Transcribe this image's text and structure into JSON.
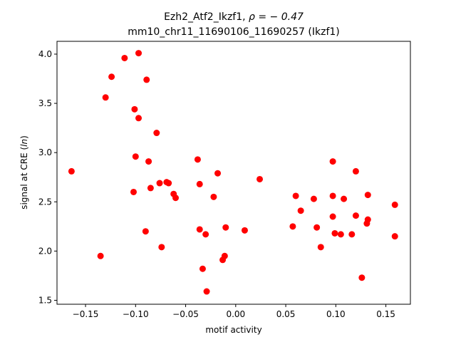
{
  "chart_data": {
    "type": "scatter",
    "title_line1": "Ezh2_Atf2_Ikzf1, ",
    "title_rho": "ρ = − 0.47",
    "title_line2": "mm10_chr11_11690106_11690257 (Ikzf1)",
    "xlabel": "motif activity",
    "ylabel_prefix": "signal at CRE (",
    "ylabel_italic": "ln",
    "ylabel_suffix": ")",
    "xlim": [
      -0.1785,
      0.1745
    ],
    "ylim": [
      1.46,
      4.13
    ],
    "xticks": [
      -0.15,
      -0.1,
      -0.05,
      0.0,
      0.05,
      0.1,
      0.15
    ],
    "xtick_labels": [
      "−0.15",
      "−0.10",
      "−0.05",
      "0.00",
      "0.05",
      "0.10",
      "0.15"
    ],
    "yticks": [
      1.5,
      2.0,
      2.5,
      3.0,
      3.5,
      4.0
    ],
    "ytick_labels": [
      "1.5",
      "2.0",
      "2.5",
      "3.0",
      "3.5",
      "4.0"
    ],
    "grid": false,
    "marker_color": "#ff0000",
    "points": [
      {
        "x": -0.164,
        "y": 2.81
      },
      {
        "x": -0.135,
        "y": 1.95
      },
      {
        "x": -0.13,
        "y": 3.56
      },
      {
        "x": -0.124,
        "y": 3.77
      },
      {
        "x": -0.111,
        "y": 3.96
      },
      {
        "x": -0.102,
        "y": 2.6
      },
      {
        "x": -0.101,
        "y": 3.44
      },
      {
        "x": -0.1,
        "y": 2.96
      },
      {
        "x": -0.097,
        "y": 4.01
      },
      {
        "x": -0.097,
        "y": 3.35
      },
      {
        "x": -0.09,
        "y": 2.2
      },
      {
        "x": -0.089,
        "y": 3.74
      },
      {
        "x": -0.087,
        "y": 2.91
      },
      {
        "x": -0.085,
        "y": 2.64
      },
      {
        "x": -0.079,
        "y": 3.2
      },
      {
        "x": -0.076,
        "y": 2.69
      },
      {
        "x": -0.074,
        "y": 2.04
      },
      {
        "x": -0.069,
        "y": 2.7
      },
      {
        "x": -0.067,
        "y": 2.69
      },
      {
        "x": -0.062,
        "y": 2.58
      },
      {
        "x": -0.06,
        "y": 2.54
      },
      {
        "x": -0.038,
        "y": 2.93
      },
      {
        "x": -0.036,
        "y": 2.22
      },
      {
        "x": -0.036,
        "y": 2.68
      },
      {
        "x": -0.033,
        "y": 1.82
      },
      {
        "x": -0.03,
        "y": 2.17
      },
      {
        "x": -0.029,
        "y": 1.59
      },
      {
        "x": -0.022,
        "y": 2.55
      },
      {
        "x": -0.018,
        "y": 2.79
      },
      {
        "x": -0.013,
        "y": 1.91
      },
      {
        "x": -0.011,
        "y": 1.95
      },
      {
        "x": -0.01,
        "y": 2.24
      },
      {
        "x": 0.009,
        "y": 2.21
      },
      {
        "x": 0.024,
        "y": 2.73
      },
      {
        "x": 0.057,
        "y": 2.25
      },
      {
        "x": 0.06,
        "y": 2.56
      },
      {
        "x": 0.065,
        "y": 2.41
      },
      {
        "x": 0.078,
        "y": 2.53
      },
      {
        "x": 0.081,
        "y": 2.24
      },
      {
        "x": 0.085,
        "y": 2.04
      },
      {
        "x": 0.097,
        "y": 2.91
      },
      {
        "x": 0.097,
        "y": 2.56
      },
      {
        "x": 0.097,
        "y": 2.35
      },
      {
        "x": 0.099,
        "y": 2.18
      },
      {
        "x": 0.105,
        "y": 2.17
      },
      {
        "x": 0.108,
        "y": 2.53
      },
      {
        "x": 0.116,
        "y": 2.17
      },
      {
        "x": 0.12,
        "y": 2.81
      },
      {
        "x": 0.12,
        "y": 2.36
      },
      {
        "x": 0.126,
        "y": 1.73
      },
      {
        "x": 0.131,
        "y": 2.28
      },
      {
        "x": 0.132,
        "y": 2.32
      },
      {
        "x": 0.132,
        "y": 2.57
      },
      {
        "x": 0.159,
        "y": 2.47
      },
      {
        "x": 0.159,
        "y": 2.15
      }
    ]
  }
}
